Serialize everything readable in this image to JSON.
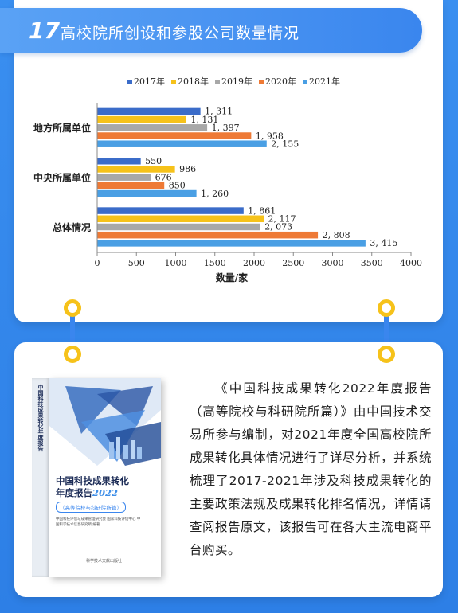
{
  "header": {
    "number": "17",
    "title": "高校院所创设和参股公司数量情况"
  },
  "chart_data": {
    "type": "bar",
    "orientation": "horizontal",
    "categories": [
      "地方所属单位",
      "中央所属单位",
      "总体情况"
    ],
    "series": [
      {
        "name": "2017年",
        "color": "#3b6cc9",
        "values": [
          1311,
          550,
          1861
        ],
        "labels": [
          "1, 311",
          "550",
          "1, 861"
        ]
      },
      {
        "name": "2018年",
        "color": "#f6c21a",
        "values": [
          1131,
          986,
          2117
        ],
        "labels": [
          "1, 131",
          "986",
          "2, 117"
        ]
      },
      {
        "name": "2019年",
        "color": "#a8a8a8",
        "values": [
          1397,
          676,
          2073
        ],
        "labels": [
          "1, 397",
          "676",
          "2, 073"
        ]
      },
      {
        "name": "2020年",
        "color": "#ee7a36",
        "values": [
          1958,
          850,
          2808
        ],
        "labels": [
          "1, 958",
          "850",
          "2, 808"
        ]
      },
      {
        "name": "2021年",
        "color": "#4a9fe4",
        "values": [
          2155,
          1260,
          3415
        ],
        "labels": [
          "2, 155",
          "1, 260",
          "3, 415"
        ]
      }
    ],
    "xticks": [
      "0",
      "500",
      "1000",
      "1500",
      "2000",
      "2500",
      "3000",
      "3500",
      "4000"
    ],
    "xlim": [
      0,
      4000
    ],
    "xlabel": "数量/家",
    "ylabel": "",
    "legend_position": "top"
  },
  "book": {
    "spine": "中国科技成果转化年度报告",
    "title_line1": "中国科技成果转化",
    "title_line2": "年度报告",
    "title_year": "2022",
    "subtitle": "（高等院校与科研院所篇）",
    "authors": "中国科技评估与成果管理研究会  国家科技评估中心  中国科学技术信息研究所  编著",
    "publisher": "科学技术文献出版社"
  },
  "description": "《中国科技成果转化2022年度报告（高等院校与科研院所篇）》由中国技术交易所参与编制，对2021年度全国高校院所成果转化具体情况进行了详尽分析，并系统梳理了2017-2021年涉及科技成果转化的主要政策法规及成果转化排名情况，详情请查阅报告原文，该报告可在各大主流电商平台购买。"
}
